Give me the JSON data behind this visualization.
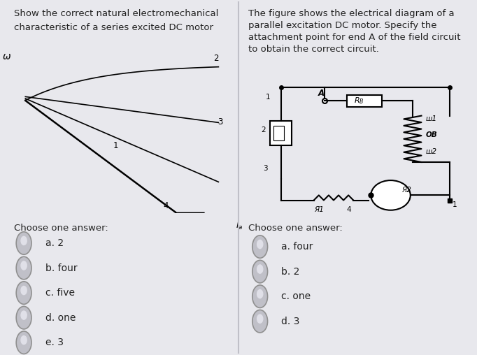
{
  "bg_color": "#e8e8ed",
  "left_title_line1": "Show the correct natural electromechanical",
  "left_title_line2": "characteristic of a series excited DC motor",
  "right_title": "The figure shows the electrical diagram of a\nparallel excitation DC motor. Specify the\nattachment point for end A of the field circuit\nto obtain the correct circuit.",
  "left_choices_label": "Choose one answer:",
  "left_choices": [
    "a. 2",
    "b. four",
    "c. five",
    "d. one",
    "e. 3"
  ],
  "right_choices_label": "Choose one answer:",
  "right_choices": [
    "a. four",
    "b. 2",
    "c. one",
    "d. 3"
  ],
  "text_color": "#222222",
  "plot_bg": "#d0cfc0",
  "circuit_bg": "#c8c8b0",
  "title_fontsize": 9.5,
  "choice_fontsize": 10,
  "label_fontsize": 9
}
